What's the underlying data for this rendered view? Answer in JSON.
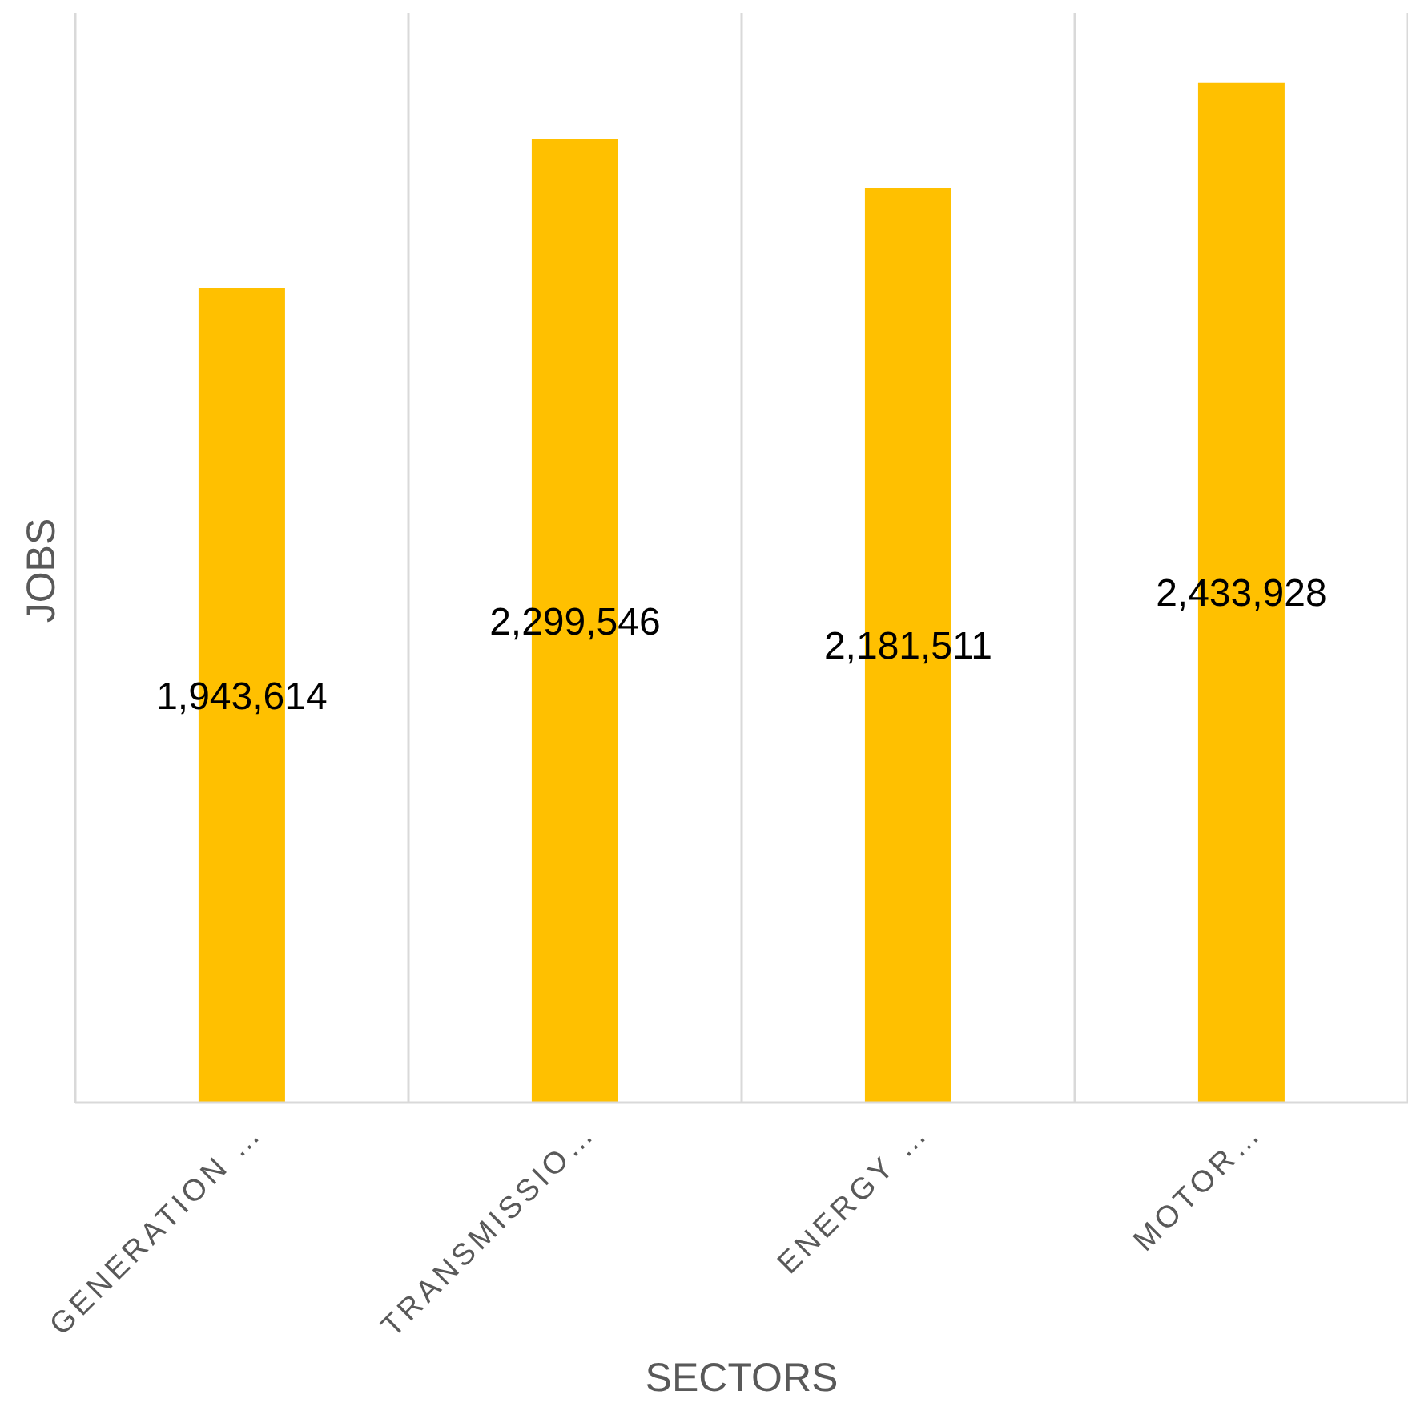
{
  "chart_data": {
    "type": "bar",
    "xlabel": "SECTORS",
    "ylabel": "JOBS",
    "categories": [
      "GENERATION …",
      "TRANSMISSIO…",
      "ENERGY …",
      "MOTOR…"
    ],
    "values": [
      1943614,
      2299546,
      2181511,
      2433928
    ],
    "value_labels": [
      "1,943,614",
      "2,299,546",
      "2,181,511",
      "2,433,928"
    ],
    "color": "#ffc000",
    "tick_labels": "x",
    "grid": "x"
  }
}
